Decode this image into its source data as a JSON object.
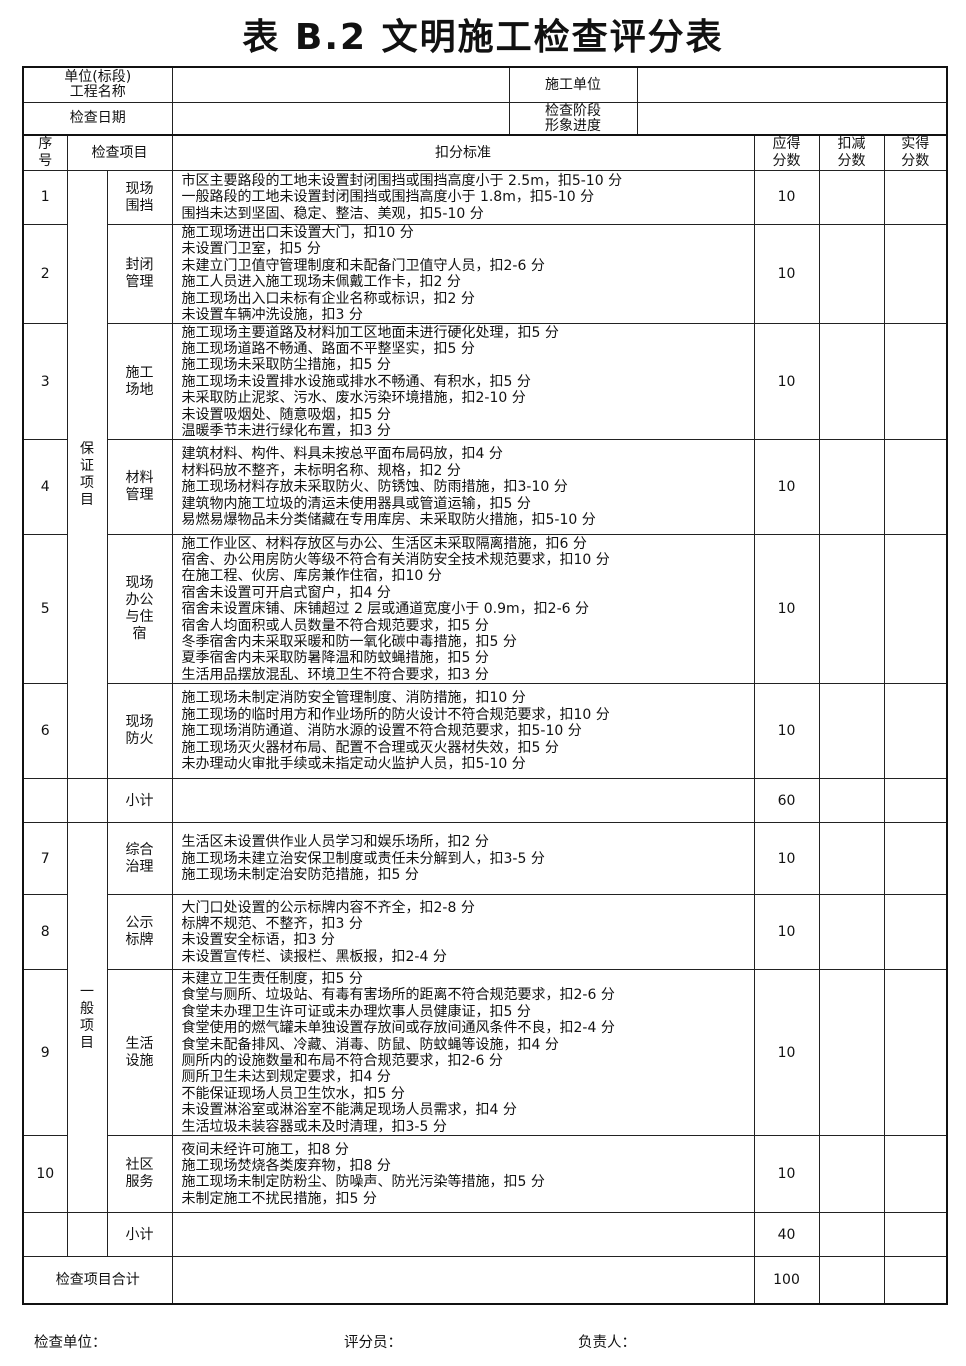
{
  "title": "表 B.2  文明施工检查评分表",
  "header": {
    "project_label": "单位(标段)\n工程名称",
    "project_value": "",
    "contractor_label": "施工单位",
    "contractor_value": "",
    "date_label": "检查日期",
    "date_value": "",
    "stage_label": "检查阶段\n形象进度",
    "stage_value": ""
  },
  "columns": {
    "no": "序号",
    "item": "检查项目",
    "criteria": "扣分标准",
    "should": "应得分数",
    "deduct": "扣减分数",
    "actual": "实得分数"
  },
  "groups": [
    {
      "name": "保证项目",
      "rows": [
        {
          "no": "1",
          "item": "现场围挡",
          "should": "10",
          "criteria": [
            "市区主要路段的工地未设置封闭围挡或围挡高度小于 2.5m，扣5-10 分",
            "一般路段的工地未设置封闭围挡或围挡高度小于 1.8m，扣5-10 分",
            "围挡未达到坚固、稳定、整洁、美观，扣5-10 分"
          ]
        },
        {
          "no": "2",
          "item": "封闭管理",
          "should": "10",
          "criteria": [
            "施工现场进出口未设置大门，扣10 分",
            "未设置门卫室，扣5 分",
            "未建立门卫值守管理制度和未配备门卫值守人员，扣2-6 分",
            "施工人员进入施工现场未佩戴工作卡，扣2 分",
            "施工现场出入口未标有企业名称或标识，扣2 分",
            "未设置车辆冲洗设施，扣3 分"
          ]
        },
        {
          "no": "3",
          "item": "施工场地",
          "should": "10",
          "criteria": [
            "施工现场主要道路及材料加工区地面未进行硬化处理，扣5 分",
            "施工现场道路不畅通、路面不平整坚实，扣5 分",
            "施工现场未采取防尘措施，扣5 分",
            "施工现场未设置排水设施或排水不畅通、有积水，扣5 分",
            "未采取防止泥浆、污水、废水污染环境措施，扣2-10 分",
            "未设置吸烟处、随意吸烟，扣5 分",
            "温暖季节未进行绿化布置，扣3 分"
          ]
        },
        {
          "no": "4",
          "item": "材料管理",
          "should": "10",
          "criteria": [
            "建筑材料、构件、料具未按总平面布局码放，扣4 分",
            "材料码放不整齐，未标明名称、规格，扣2 分",
            "施工现场材料存放未采取防火、防锈蚀、防雨措施，扣3-10 分",
            "建筑物内施工垃圾的清运未使用器具或管道运输，扣5 分",
            "易燃易爆物品未分类储藏在专用库房、未采取防火措施，扣5-10 分"
          ]
        },
        {
          "no": "5",
          "item": "现场办公与住宿",
          "should": "10",
          "criteria": [
            "施工作业区、材料存放区与办公、生活区未采取隔离措施，扣6 分",
            "宿舍、办公用房防火等级不符合有关消防安全技术规范要求，扣10 分",
            "在施工程、伙房、库房兼作住宿，扣10 分",
            "宿舍未设置可开启式窗户，扣4 分",
            "宿舍未设置床铺、床铺超过 2 层或通道宽度小于 0.9m，扣2-6 分",
            "宿舍人均面积或人员数量不符合规范要求，扣5 分",
            "冬季宿舍内未采取采暖和防一氧化碳中毒措施，扣5 分",
            "夏季宿舍内未采取防暑降温和防蚊蝇措施，扣5 分",
            "生活用品摆放混乱、环境卫生不符合要求，扣3 分"
          ]
        },
        {
          "no": "6",
          "item": "现场防火",
          "should": "10",
          "criteria": [
            "施工现场未制定消防安全管理制度、消防措施，扣10 分",
            "施工现场的临时用方和作业场所的防火设计不符合规范要求，扣10 分",
            "施工现场消防通道、消防水源的设置不符合规范要求，扣5-10 分",
            "施工现场灭火器材布局、配置不合理或灭火器材失效，扣5 分",
            "未办理动火审批手续或未指定动火监护人员，扣5-10 分"
          ]
        }
      ],
      "subtotal_label": "小计",
      "subtotal": "60"
    },
    {
      "name": "一般项目",
      "rows": [
        {
          "no": "7",
          "item": "综合治理",
          "should": "10",
          "criteria": [
            "生活区未设置供作业人员学习和娱乐场所，扣2 分",
            "施工现场未建立治安保卫制度或责任未分解到人，扣3-5 分",
            "施工现场未制定治安防范措施，扣5 分"
          ]
        },
        {
          "no": "8",
          "item": "公示标牌",
          "should": "10",
          "criteria": [
            "大门口处设置的公示标牌内容不齐全，扣2-8 分",
            "标牌不规范、不整齐，扣3 分",
            "未设置安全标语，扣3 分",
            "未设置宣传栏、读报栏、黑板报，扣2-4 分"
          ]
        },
        {
          "no": "9",
          "item": "生活设施",
          "should": "10",
          "criteria": [
            "未建立卫生责任制度，扣5 分",
            "食堂与厕所、垃圾站、有毒有害场所的距离不符合规范要求，扣2-6 分",
            "食堂未办理卫生许可证或未办理炊事人员健康证，扣5 分",
            "食堂使用的燃气罐未单独设置存放间或存放间通风条件不良，扣2-4 分",
            "食堂未配备排风、冷藏、消毒、防鼠、防蚊蝇等设施，扣4 分",
            "厕所内的设施数量和布局不符合规范要求，扣2-6 分",
            "厕所卫生未达到规定要求，扣4 分",
            "不能保证现场人员卫生饮水，扣5 分",
            "未设置淋浴室或淋浴室不能满足现场人员需求，扣4 分",
            "生活垃圾未装容器或未及时清理，扣3-5 分"
          ]
        },
        {
          "no": "10",
          "item": "社区服务",
          "should": "10",
          "criteria": [
            "夜间未经许可施工，扣8 分",
            "施工现场焚烧各类废弃物，扣8 分",
            "施工现场未制定防粉尘、防噪声、防光污染等措施，扣5 分",
            "未制定施工不扰民措施，扣5 分"
          ]
        }
      ],
      "subtotal_label": "小计",
      "subtotal": "40"
    }
  ],
  "total": {
    "label": "检查项目合计",
    "value": "100"
  },
  "footer": {
    "unit": "检查单位：",
    "scorer": "评分员：",
    "responsible": "负责人："
  }
}
